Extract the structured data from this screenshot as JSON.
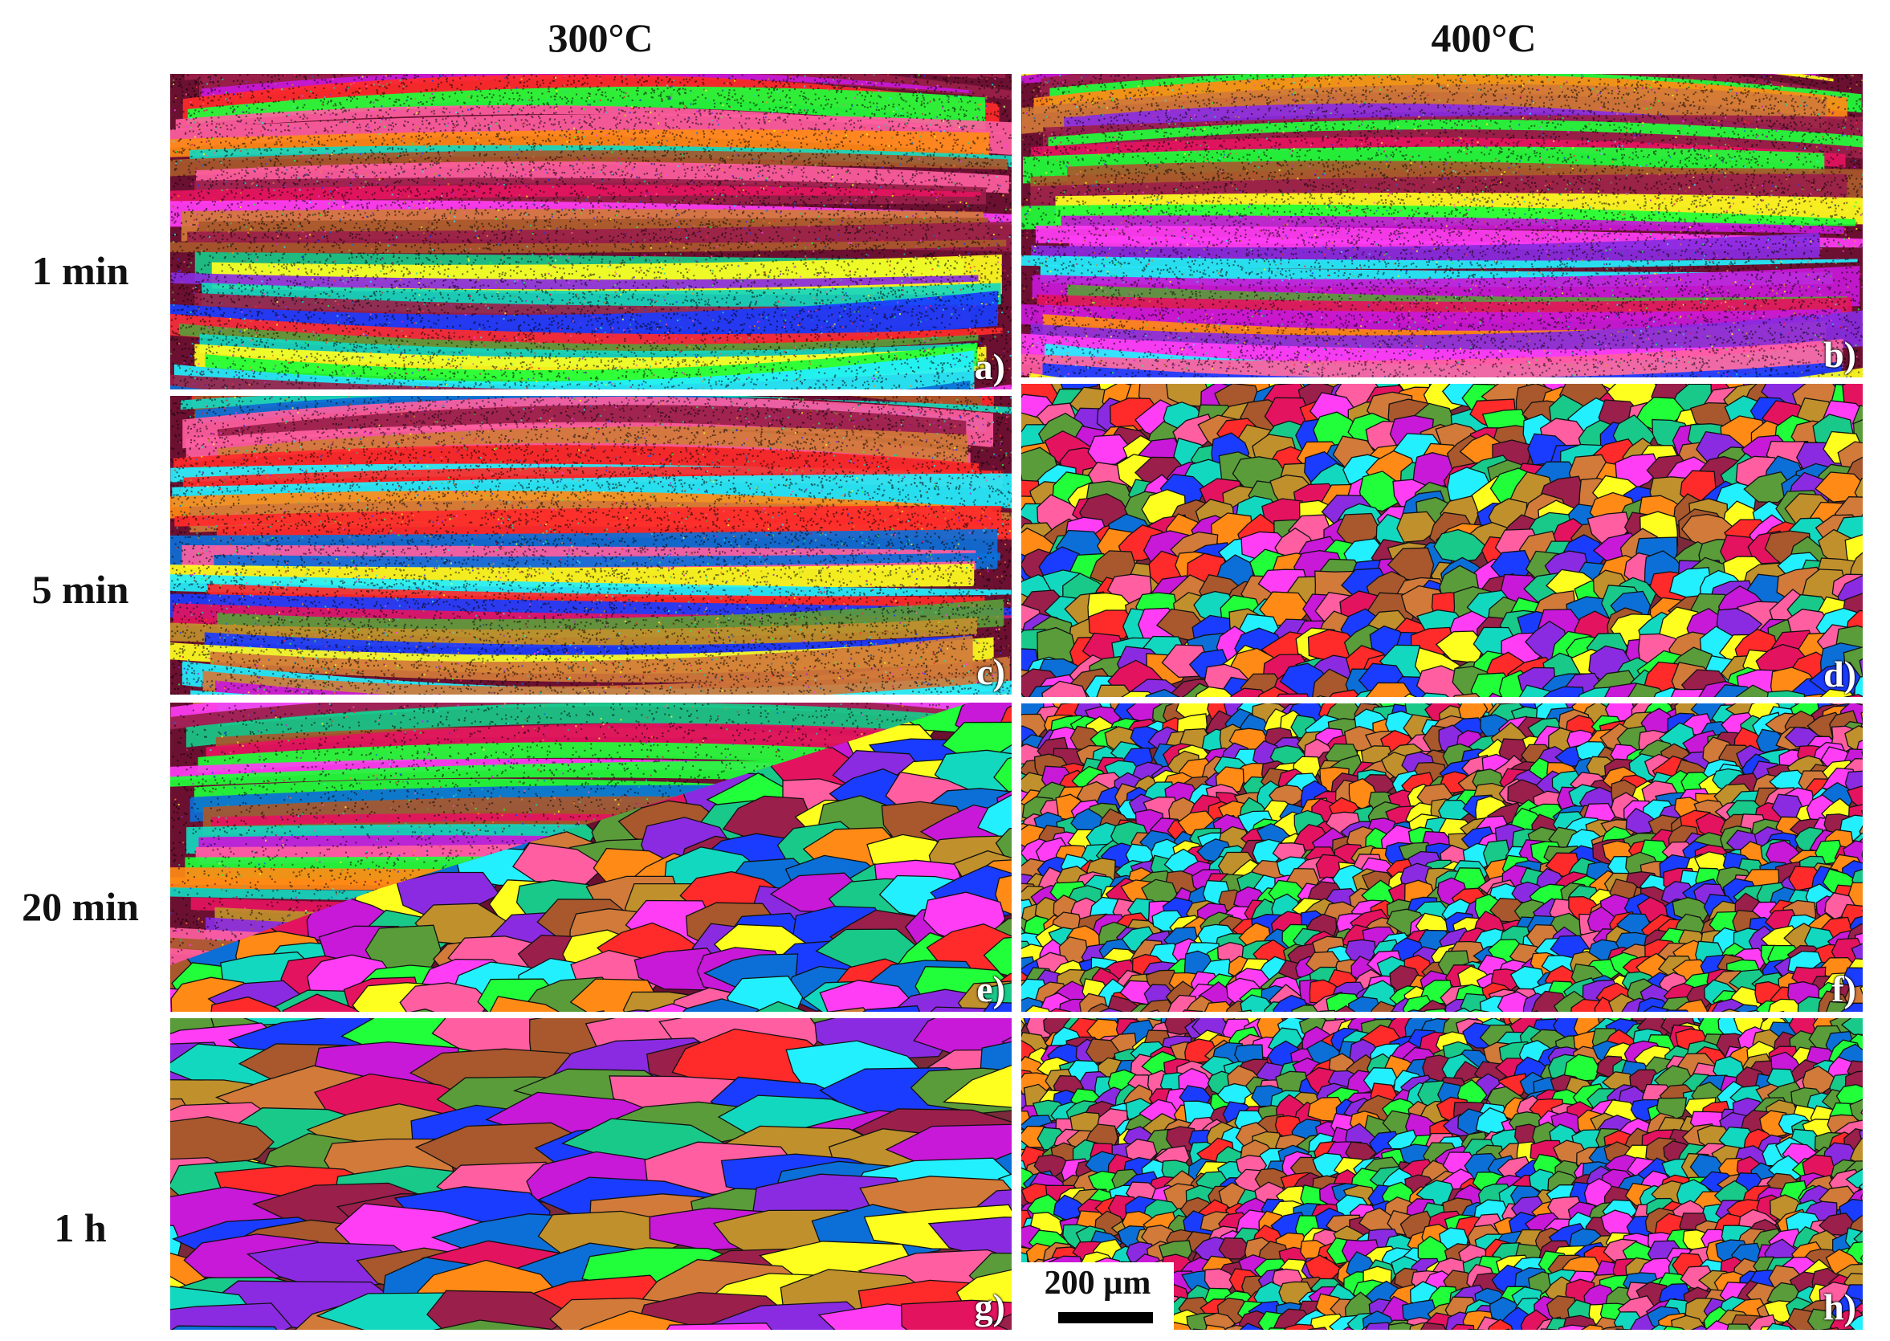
{
  "columns": [
    "300°C",
    "400°C"
  ],
  "rows": [
    "1 min",
    "5 min",
    "20 min",
    "1 h"
  ],
  "panels": [
    {
      "label": "a)",
      "temperature": "300°C",
      "time": "1 min",
      "structure": "deformed-bands"
    },
    {
      "label": "b)",
      "temperature": "400°C",
      "time": "1 min",
      "structure": "deformed-bands"
    },
    {
      "label": "c)",
      "temperature": "300°C",
      "time": "5 min",
      "structure": "deformed-bands"
    },
    {
      "label": "d)",
      "temperature": "400°C",
      "time": "5 min",
      "structure": "recrystallized-grains"
    },
    {
      "label": "e)",
      "temperature": "300°C",
      "time": "20 min",
      "structure": "partially-recrystallized"
    },
    {
      "label": "f)",
      "temperature": "400°C",
      "time": "20 min",
      "structure": "recrystallized-grains"
    },
    {
      "label": "g)",
      "temperature": "300°C",
      "time": "1 h",
      "structure": "coarse-grains"
    },
    {
      "label": "h)",
      "temperature": "400°C",
      "time": "1 h",
      "structure": "recrystallized-grains"
    }
  ],
  "scale_bar": {
    "label": "200 µm"
  },
  "colors": {
    "palette": [
      "#e4135f",
      "#ff2a2a",
      "#1a3cff",
      "#0c6fd8",
      "#ffff1f",
      "#23f0ff",
      "#20ff3a",
      "#ff3df5",
      "#c818d8",
      "#8a2be2",
      "#ff8a16",
      "#d17a3a",
      "#a8582c",
      "#19c98a",
      "#13d8c0",
      "#9a1f4a",
      "#c0902c",
      "#5a9c3a",
      "#ff5ea0"
    ],
    "band_background": "#6b1030"
  }
}
